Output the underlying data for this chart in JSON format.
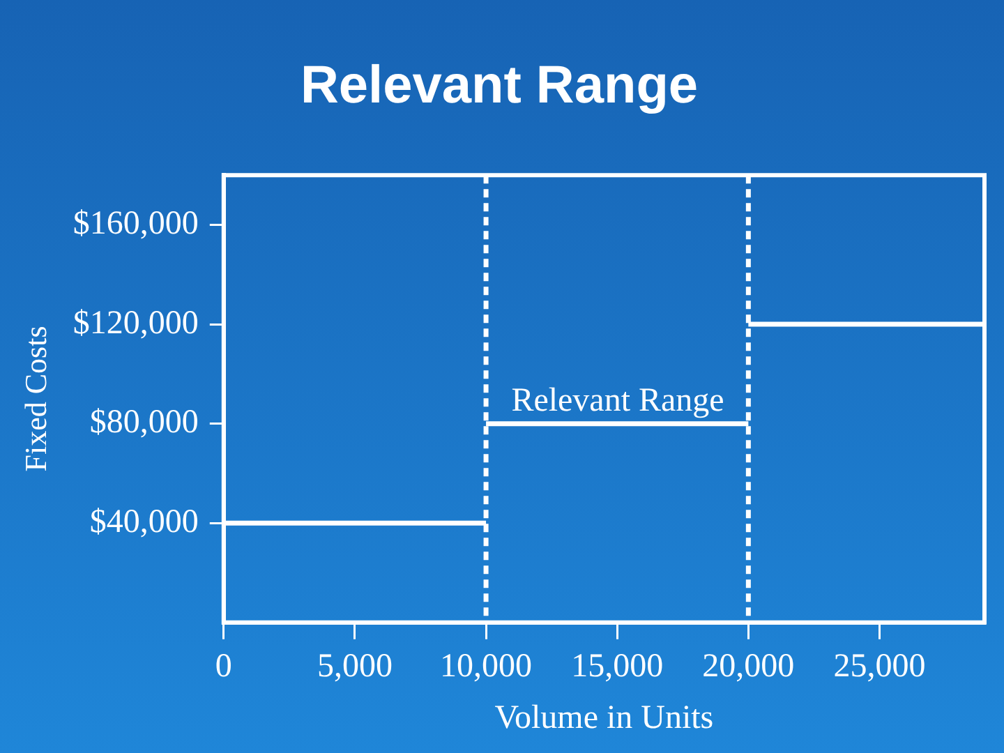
{
  "chart_data": {
    "type": "line",
    "title": "Relevant Range",
    "xlabel": "Volume in Units",
    "ylabel": "Fixed Costs",
    "xlim": [
      0,
      29000
    ],
    "ylim": [
      0,
      180000
    ],
    "xticks": [
      0,
      {
        "value": 5000,
        "label": "5,000"
      },
      {
        "value": 10000,
        "label": "10,000"
      },
      {
        "value": 15000,
        "label": "15,000"
      },
      {
        "value": 20000,
        "label": "20,000"
      },
      {
        "value": 25000,
        "label": "25,000"
      }
    ],
    "yticks": [
      {
        "value": 40000,
        "label": "$40,000"
      },
      {
        "value": 80000,
        "label": "$80,000"
      },
      {
        "value": 120000,
        "label": "$120,000"
      },
      {
        "value": 160000,
        "label": "$160,000"
      }
    ],
    "series": [
      {
        "color": "#ffffff",
        "x": [
          0,
          10000
        ],
        "values": [
          40000,
          40000
        ]
      },
      {
        "color": "#ffffff",
        "x": [
          10000,
          20000
        ],
        "values": [
          80000,
          80000
        ]
      },
      {
        "color": "#ffffff",
        "x": [
          20000,
          29000
        ],
        "values": [
          120000,
          120000
        ]
      }
    ],
    "ref_lines": [
      {
        "axis": "x",
        "value": 10000,
        "color": "#ffffff",
        "line_style": "dashed"
      },
      {
        "axis": "x",
        "value": 20000,
        "color": "#ffffff",
        "line_style": "dashed"
      }
    ],
    "annotations": [
      "Relevant Range"
    ],
    "grid": false,
    "legend": false,
    "marker": "none",
    "line_style": "solid"
  }
}
